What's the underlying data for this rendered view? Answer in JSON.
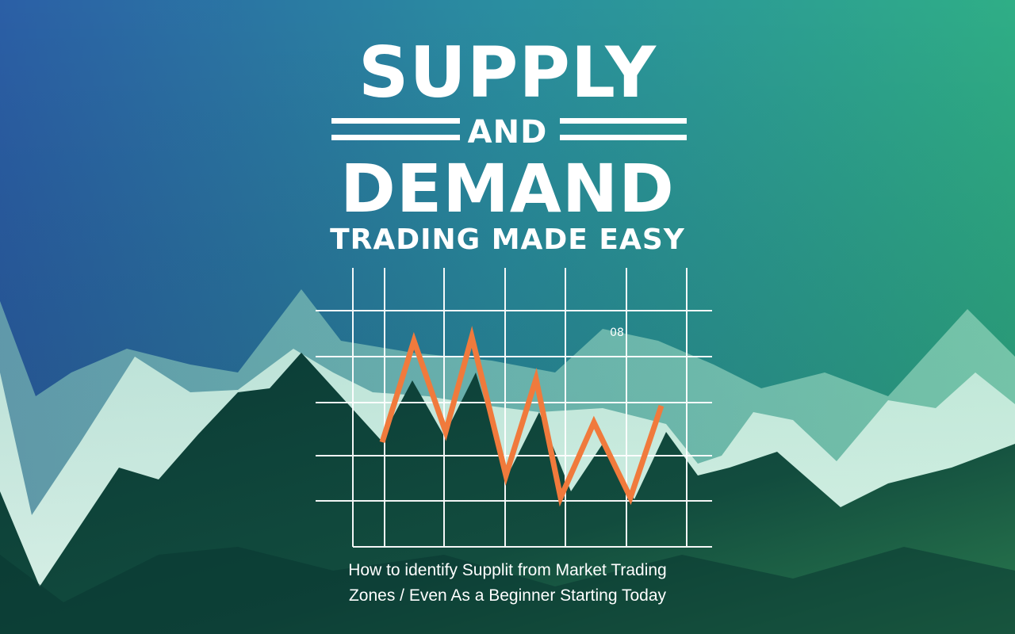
{
  "title": {
    "line1": "SUPPLY",
    "line2": "AND",
    "line3": "DEMAND",
    "line4": "TRADING MADE EASY"
  },
  "chart_label": "08",
  "subtitle": {
    "line1": "How to identify Supplit from Market Trading",
    "line2": "Zones / Even As a Beginner Starting Today"
  },
  "colors": {
    "sky_left": "#2b5fa6",
    "sky_right": "#2fae86",
    "line": "#f07a3c",
    "grid": "#ffffff",
    "mountain_dark": "#0c3b36",
    "mountain_light": "#c8ecdc"
  }
}
